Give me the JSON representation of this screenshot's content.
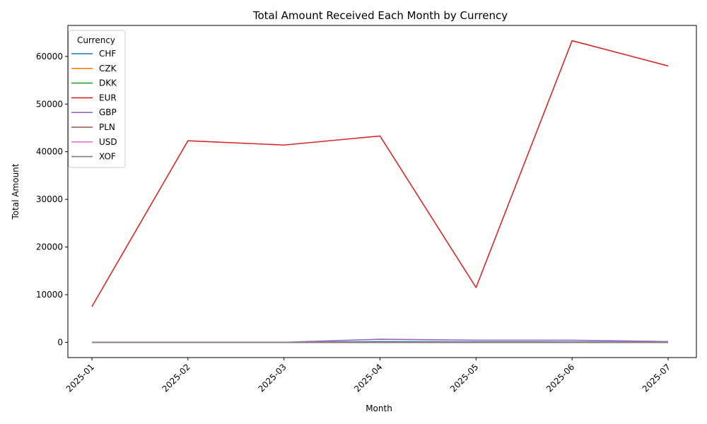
{
  "chart_data": {
    "type": "line",
    "title": "Total Amount Received Each Month by Currency",
    "xlabel": "Month",
    "ylabel": "Total Amount",
    "categories": [
      "2025-01",
      "2025-02",
      "2025-03",
      "2025-04",
      "2025-05",
      "2025-06",
      "2025-07"
    ],
    "ylim": [
      -3200,
      66500
    ],
    "yticks": [
      0,
      10000,
      20000,
      30000,
      40000,
      50000,
      60000
    ],
    "grid": false,
    "legend": {
      "title": "Currency",
      "placement": "top-left"
    },
    "series": [
      {
        "name": "CHF",
        "color": "#1f77b4",
        "values": [
          0,
          0,
          0,
          150,
          100,
          80,
          50
        ]
      },
      {
        "name": "CZK",
        "color": "#ff7f0e",
        "values": [
          0,
          0,
          0,
          0,
          0,
          0,
          0
        ]
      },
      {
        "name": "DKK",
        "color": "#2ca02c",
        "values": [
          0,
          0,
          0,
          0,
          0,
          0,
          0
        ]
      },
      {
        "name": "EUR",
        "color": "#d62728",
        "values": [
          7500,
          42300,
          41400,
          43300,
          11500,
          63300,
          58000
        ]
      },
      {
        "name": "GBP",
        "color": "#9467bd",
        "values": [
          0,
          0,
          0,
          650,
          450,
          450,
          150
        ]
      },
      {
        "name": "PLN",
        "color": "#8c564b",
        "values": [
          0,
          0,
          0,
          0,
          0,
          0,
          0
        ]
      },
      {
        "name": "USD",
        "color": "#e377c2",
        "values": [
          0,
          0,
          0,
          0,
          0,
          0,
          0
        ]
      },
      {
        "name": "XOF",
        "color": "#7f7f7f",
        "values": [
          0,
          0,
          0,
          0,
          0,
          0,
          0
        ]
      }
    ]
  }
}
